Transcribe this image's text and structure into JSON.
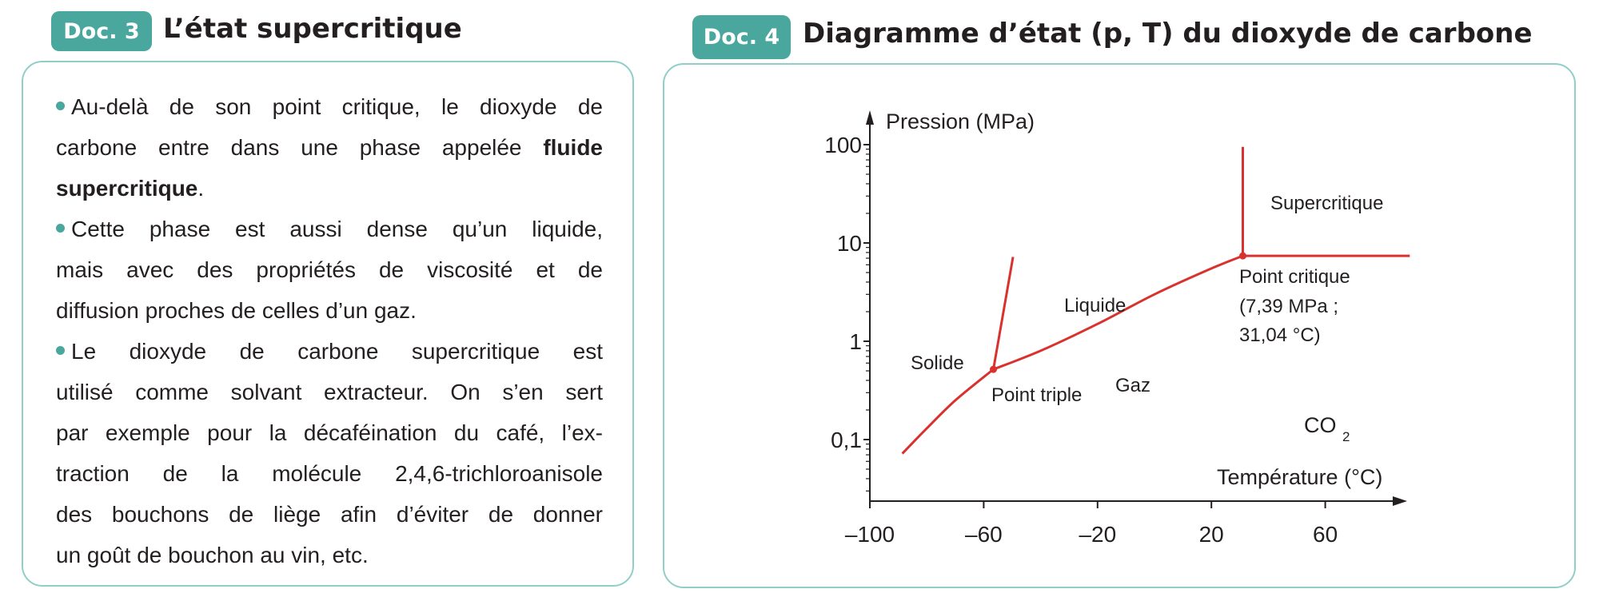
{
  "doc3": {
    "badge": "Doc. 3",
    "title": "L’état supercritique",
    "lines": [
      {
        "bullet": true,
        "segments": [
          {
            "text": "Au-delà de son point critique, le dioxyde de"
          }
        ]
      },
      {
        "segments": [
          {
            "text": "carbone entre dans une phase appelée "
          },
          {
            "text": "fluide",
            "bold": true
          }
        ]
      },
      {
        "segments": [
          {
            "text": "supercritique",
            "bold": true
          },
          {
            "text": "."
          }
        ],
        "last": true
      },
      {
        "bullet": true,
        "segments": [
          {
            "text": "Cette phase est aussi dense qu’un liquide,"
          }
        ]
      },
      {
        "segments": [
          {
            "text": "mais avec des propriétés de viscosité et de"
          }
        ]
      },
      {
        "segments": [
          {
            "text": "diffusion proches de celles d’un gaz."
          }
        ],
        "last": true
      },
      {
        "bullet": true,
        "segments": [
          {
            "text": "Le dioxyde de carbone supercritique est"
          }
        ]
      },
      {
        "segments": [
          {
            "text": "utilisé comme solvant extracteur. On s’en sert"
          }
        ]
      },
      {
        "segments": [
          {
            "text": "par exemple pour la décaféination du café, l’ex-"
          }
        ]
      },
      {
        "segments": [
          {
            "text": "traction de la molécule 2,4,6-trichloroanisole"
          }
        ]
      },
      {
        "segments": [
          {
            "text": "des bouchons de liège afin d’éviter de donner"
          }
        ]
      },
      {
        "segments": [
          {
            "text": "un goût de bouchon au vin, etc."
          }
        ],
        "last": true
      }
    ]
  },
  "doc4": {
    "badge": "Doc. 4",
    "title": "Diagramme d’état (p, T) du dioxyde de carbone"
  },
  "colors": {
    "accent": "#4aa79d",
    "border": "#8fcfc7",
    "curve": "#d9322e"
  },
  "chart_data": {
    "type": "line",
    "ylabel": "Pression (MPa)",
    "xlabel": "Température (°C)",
    "y_scale": "log",
    "xlim": [
      -100,
      90
    ],
    "ylim": [
      0.03,
      150
    ],
    "x_ticks": [
      -100,
      -60,
      -20,
      20,
      60
    ],
    "x_tick_labels": [
      "–100",
      "–60",
      "–20",
      "20",
      "60"
    ],
    "y_ticks": [
      0.1,
      1,
      10,
      100
    ],
    "y_tick_labels": [
      "0,1",
      "1",
      "10",
      "100"
    ],
    "series": [
      {
        "id": "sublimation",
        "points": [
          [
            -88.6,
            0.072
          ],
          [
            -80,
            0.13
          ],
          [
            -70,
            0.25
          ],
          [
            -56.6,
            0.518
          ]
        ]
      },
      {
        "id": "fusion",
        "points": [
          [
            -56.6,
            0.518
          ],
          [
            -49.7,
            7.2
          ]
        ]
      },
      {
        "id": "vaporisation",
        "points": [
          [
            -56.6,
            0.518
          ],
          [
            -40,
            0.8
          ],
          [
            -20,
            1.5
          ],
          [
            0,
            3.0
          ],
          [
            20,
            5.5
          ],
          [
            31.04,
            7.39
          ]
        ]
      },
      {
        "id": "supercritical-vertical",
        "points": [
          [
            31.04,
            7.39
          ],
          [
            31.04,
            95
          ]
        ]
      },
      {
        "id": "supercritical-horizontal",
        "points": [
          [
            31.04,
            7.39
          ],
          [
            89.7,
            7.39
          ]
        ]
      }
    ],
    "points": [
      {
        "id": "triple",
        "T": -56.6,
        "p": 0.518,
        "label": "Point triple"
      },
      {
        "id": "critical",
        "T": 31.04,
        "p": 7.39,
        "label": "Point critique",
        "label2": "(7,39 MPa ;",
        "label3": "31,04 °C)"
      }
    ],
    "region_labels": {
      "solide": "Solide",
      "liquide": "Liquide",
      "gaz": "Gaz",
      "supercritique": "Supercritique"
    },
    "species": "CO",
    "species_sub": "2"
  }
}
